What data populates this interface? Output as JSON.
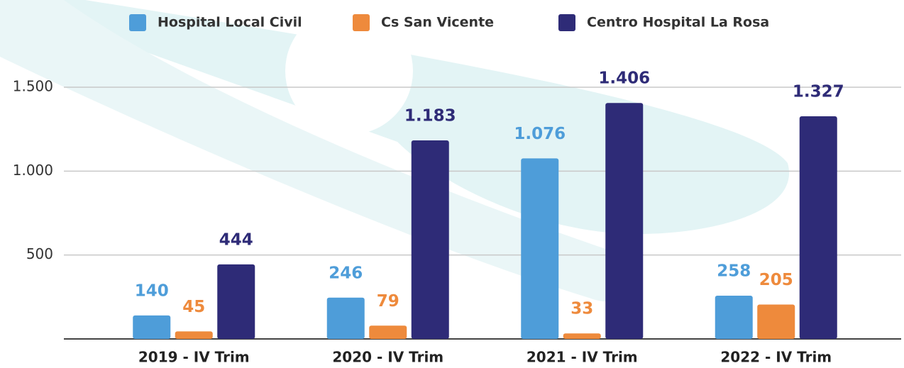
{
  "chart_data": {
    "type": "bar",
    "categories": [
      "2019 - IV Trim",
      "2020 - IV Trim",
      "2021 - IV Trim",
      "2022 - IV Trim"
    ],
    "series": [
      {
        "name": "Hospital Local Civil",
        "color": "#4e9dd9",
        "values": [
          140,
          246,
          1076,
          258
        ],
        "value_labels": [
          "140",
          "246",
          "1.076",
          "258"
        ]
      },
      {
        "name": "Cs San Vicente",
        "color": "#ee8a3c",
        "values": [
          45,
          79,
          33,
          205
        ],
        "value_labels": [
          "45",
          "79",
          "33",
          "205"
        ]
      },
      {
        "name": "Centro Hospital La Rosa",
        "color": "#2e2b77",
        "values": [
          444,
          1183,
          1406,
          1327
        ],
        "value_labels": [
          "444",
          "1.183",
          "1.406",
          "1.327"
        ]
      }
    ],
    "ylim": [
      0,
      1500
    ],
    "yticks": [
      {
        "value": 500,
        "label": "500"
      },
      {
        "value": 1000,
        "label": "1.000"
      },
      {
        "value": 1500,
        "label": "1.500"
      }
    ],
    "grid": true
  }
}
